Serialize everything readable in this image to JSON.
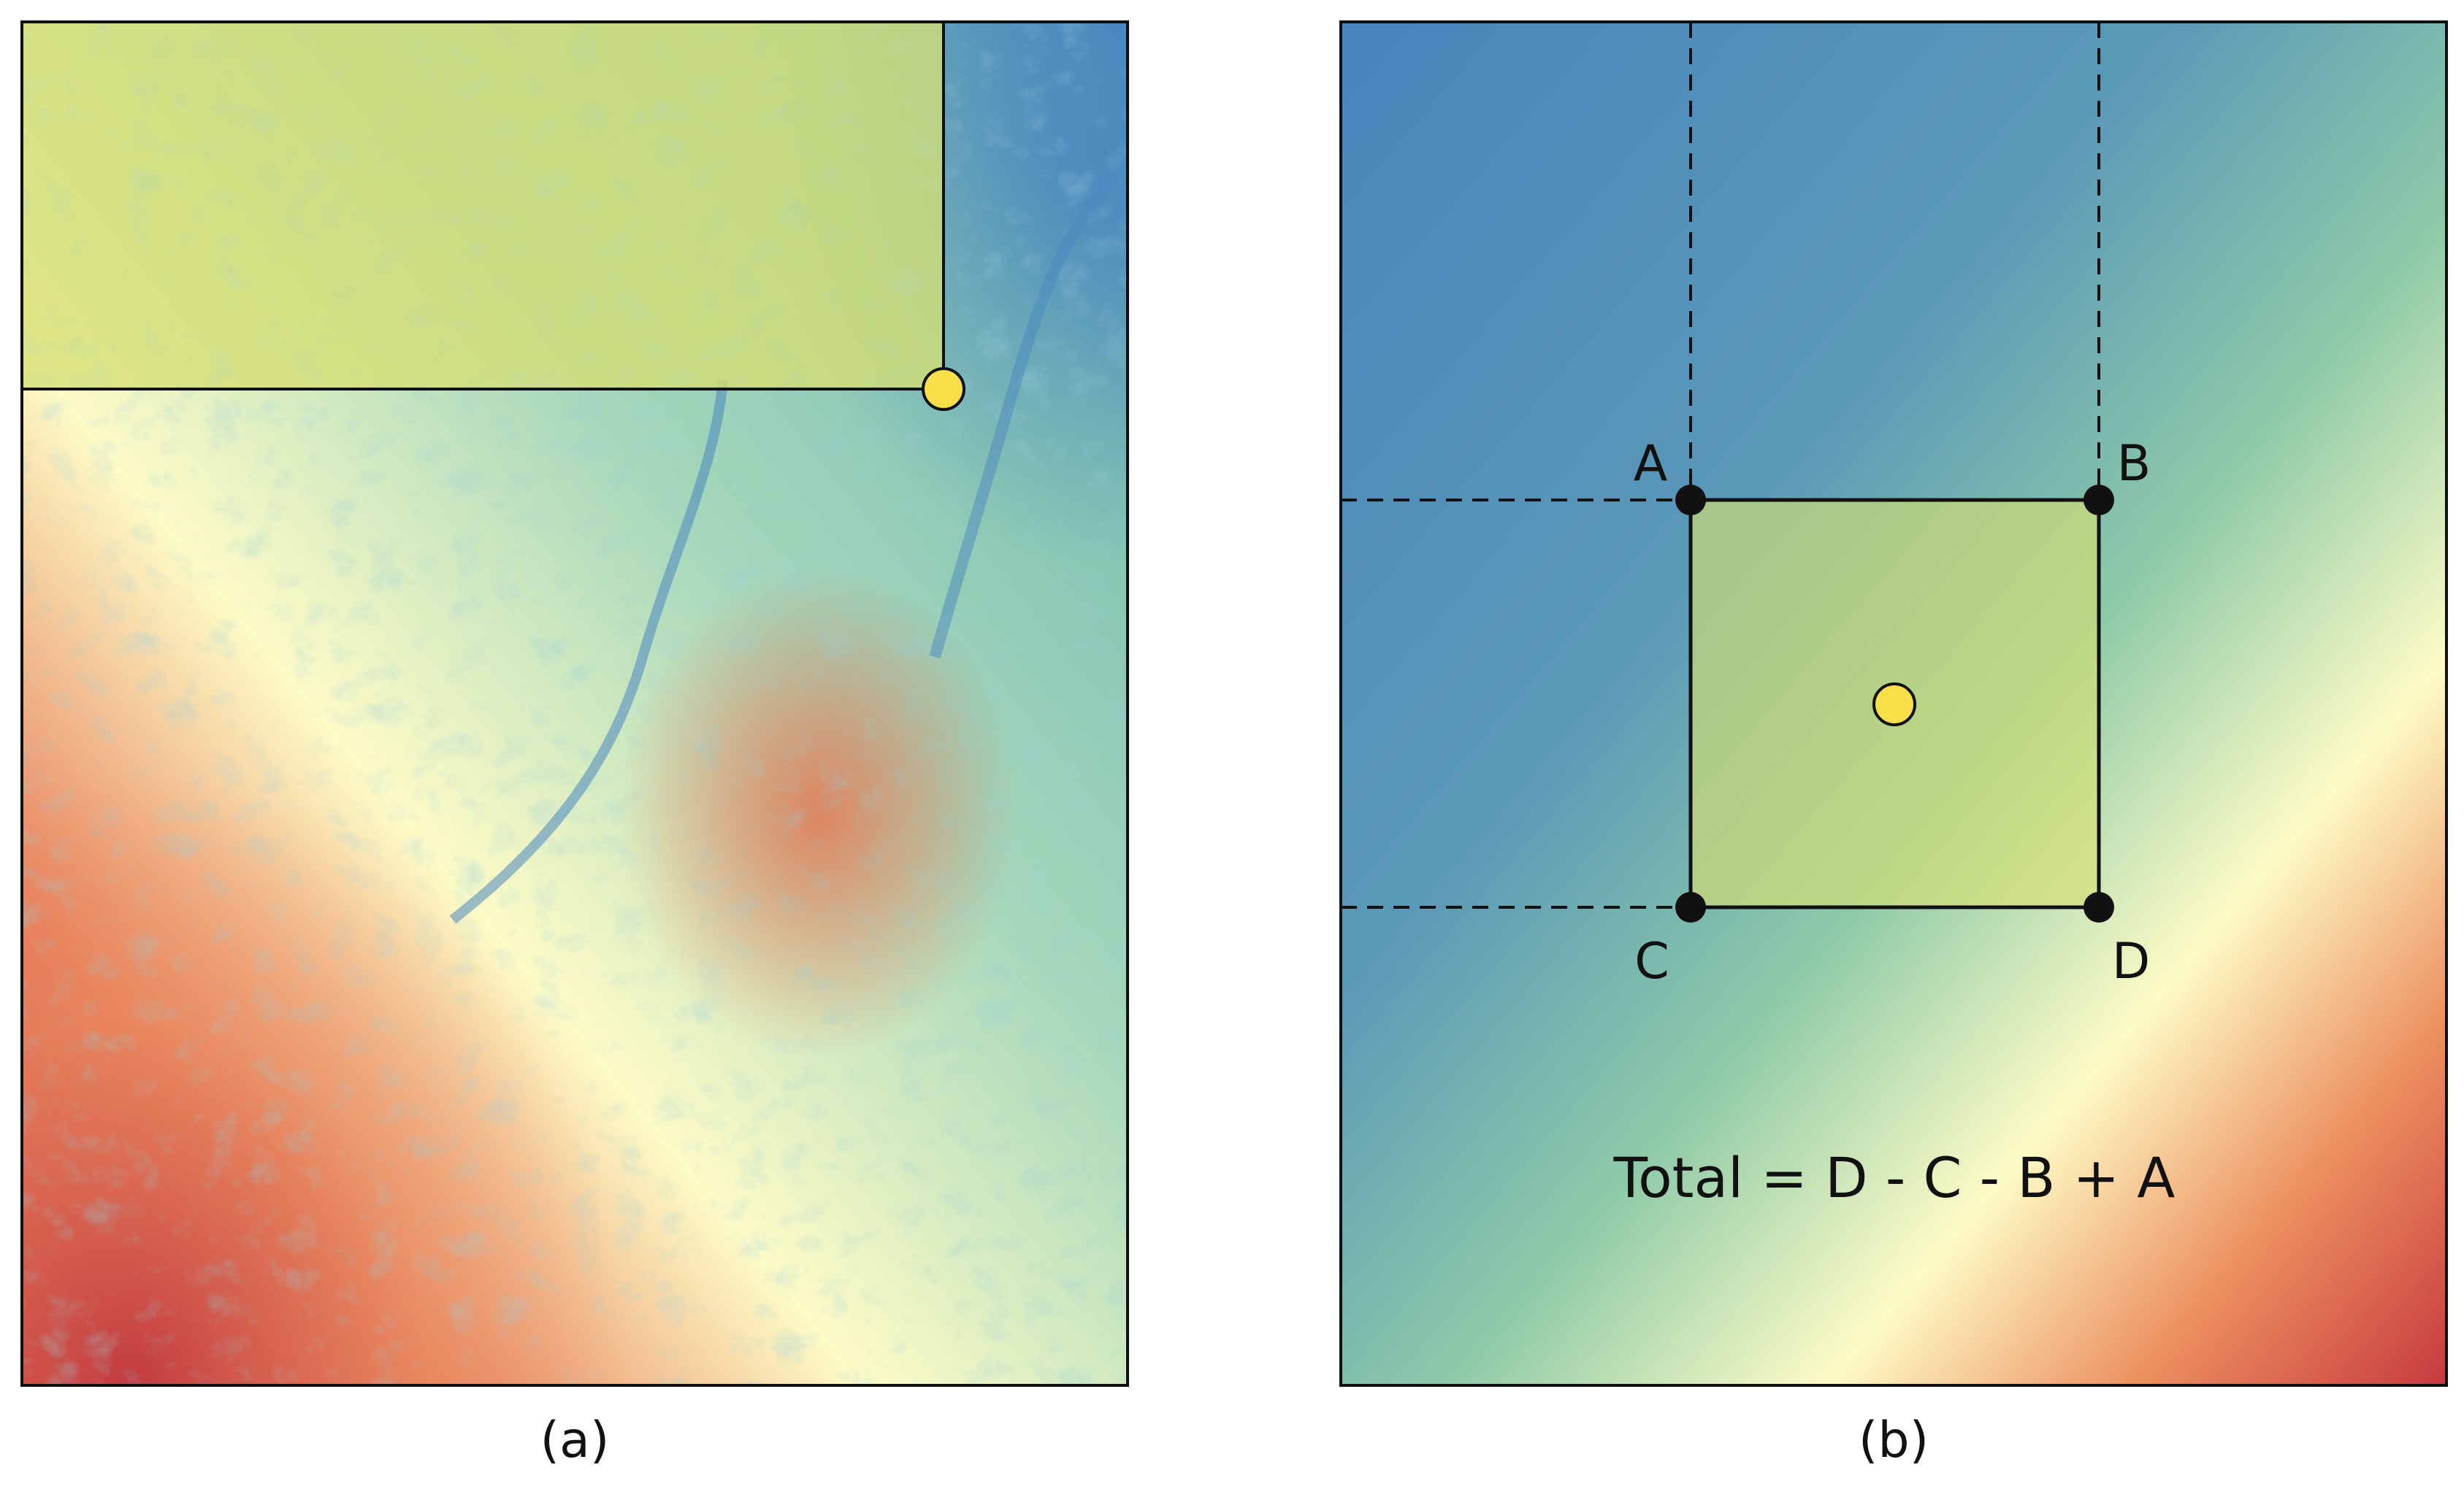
{
  "panels": {
    "a": {
      "caption": "(a)"
    },
    "b": {
      "caption": "(b)",
      "points": {
        "A": "A",
        "B": "B",
        "C": "C",
        "D": "D"
      },
      "formula": "Total = D - C - B + A"
    }
  },
  "colors": {
    "low": "#4a87bf",
    "mid_low": "#8ecaa8",
    "mid": "#fdfbc6",
    "mid_high": "#f0a070",
    "high": "#c73a3f",
    "highlight_fill": "#d8e070",
    "marker": "#f8df4a",
    "outline": "#111111"
  }
}
